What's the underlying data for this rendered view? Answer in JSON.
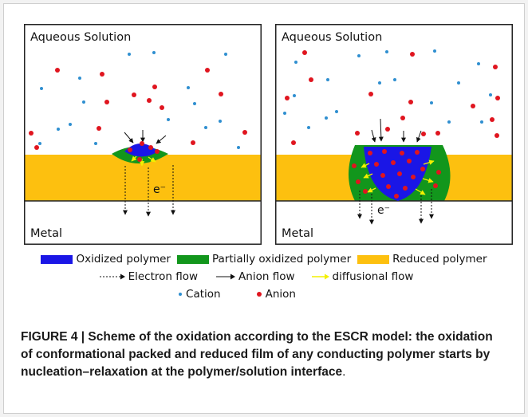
{
  "diagram": {
    "panels": [
      {
        "id": "left",
        "solution_label": "Aqueous Solution",
        "metal_label": "Metal",
        "electron_label": "e⁻"
      },
      {
        "id": "right",
        "solution_label": "Aqueous Solution",
        "metal_label": "Metal",
        "electron_label": "e⁻"
      }
    ],
    "colors": {
      "oxidized": "#1a16e6",
      "partially_oxidized": "#12961c",
      "reduced": "#fdc00f",
      "cation": "#2f8fd0",
      "anion": "#e0151f",
      "diffusion": "#f4f000"
    }
  },
  "legend": {
    "oxidized": "Oxidized polymer",
    "partially_oxidized": "Partially oxidized polymer",
    "reduced": "Reduced polymer",
    "electron_flow": "Electron flow",
    "anion_flow": "Anion flow",
    "diffusional_flow": "diffusional flow",
    "cation": "Cation",
    "anion": "Anion"
  },
  "caption": {
    "prefix": "FIGURE 4 | Scheme of the oxidation according to the ESCR model: the oxidation of conformational packed and reduced film of any conducting polymer starts by nucleation–relaxation at the polymer/solution interface",
    "suffix": "."
  }
}
